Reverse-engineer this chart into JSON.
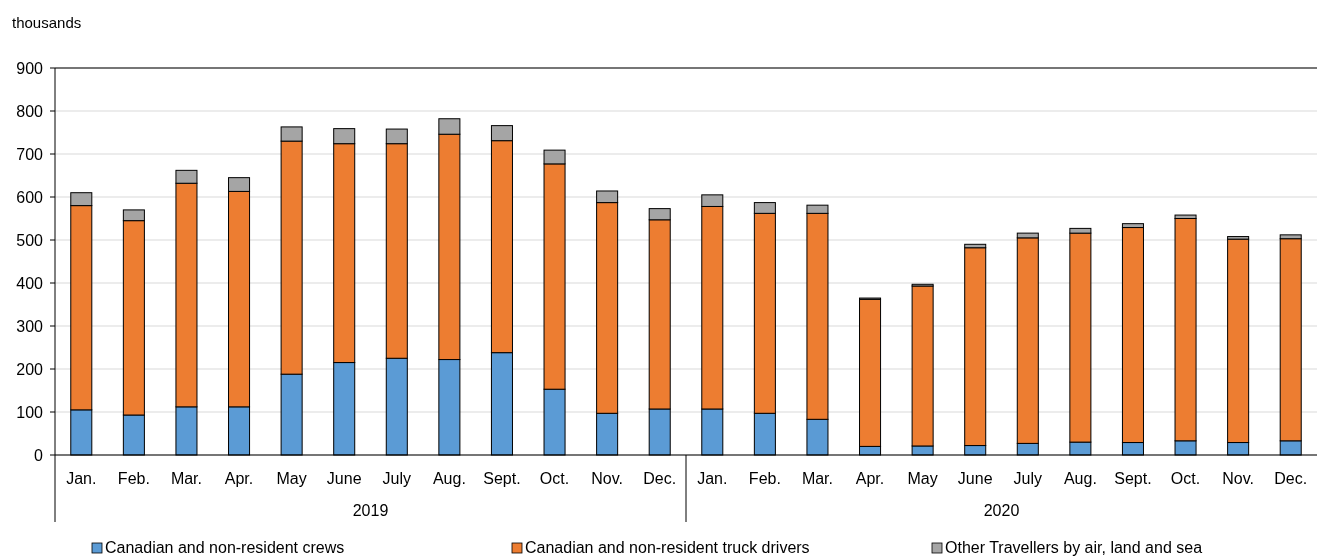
{
  "chart_data": {
    "type": "bar",
    "stacked": true,
    "ylabel": "thousands",
    "categories": [
      "Jan.",
      "Feb.",
      "Mar.",
      "Apr.",
      "May",
      "June",
      "July",
      "Aug.",
      "Sept.",
      "Oct.",
      "Nov.",
      "Dec.",
      "Jan.",
      "Feb.",
      "Mar.",
      "Apr.",
      "May",
      "June",
      "July",
      "Aug.",
      "Sept.",
      "Oct.",
      "Nov.",
      "Dec."
    ],
    "series": [
      {
        "name": "Canadian and non-resident crews",
        "color": "#5b9bd5",
        "values": [
          105,
          93,
          112,
          112,
          188,
          215,
          225,
          222,
          238,
          153,
          97,
          107,
          107,
          97,
          83,
          20,
          21,
          22,
          27,
          30,
          29,
          33,
          29,
          33
        ]
      },
      {
        "name": "Canadian and non-resident truck drivers",
        "color": "#ed7d31",
        "values": [
          475,
          452,
          520,
          501,
          542,
          509,
          499,
          524,
          493,
          524,
          490,
          440,
          471,
          465,
          479,
          342,
          372,
          460,
          478,
          486,
          500,
          517,
          473,
          470
        ]
      },
      {
        "name": "Other Travellers by air, land and sea",
        "color": "#a5a5a5",
        "values": [
          30,
          25,
          30,
          32,
          33,
          35,
          34,
          36,
          35,
          32,
          27,
          26,
          27,
          25,
          19,
          3,
          4,
          8,
          11,
          11,
          9,
          8,
          6,
          9
        ]
      }
    ],
    "ylim": [
      0,
      900
    ],
    "yticks": [
      0,
      100,
      200,
      300,
      400,
      500,
      600,
      700,
      800,
      900
    ],
    "grid": "y",
    "legend": "bottom",
    "annotations": [
      "2019",
      "2020"
    ]
  }
}
